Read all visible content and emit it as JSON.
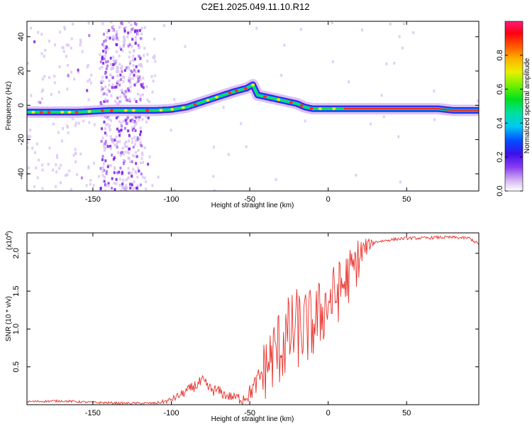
{
  "title": "C2E1.2025.049.11.10.R12",
  "chart_data": [
    {
      "type": "heatmap",
      "name": "spectrogram",
      "xlabel": "Height of straight line (km)",
      "ylabel": "Frequency (Hz)",
      "xlim": [
        -192,
        96
      ],
      "ylim": [
        -50,
        49
      ],
      "xticks": [
        -150,
        -100,
        -50,
        0,
        50
      ],
      "xtick_labels": [
        "-150",
        "-100",
        "-50",
        "0",
        "50"
      ],
      "yticks": [
        -40,
        -20,
        0,
        20,
        40
      ],
      "ytick_labels": [
        "-40",
        "-20",
        "0",
        "20",
        "40"
      ],
      "ridge": {
        "x": [
          -192,
          -180,
          -170,
          -160,
          -150,
          -140,
          -130,
          -120,
          -110,
          -100,
          -90,
          -80,
          -70,
          -60,
          -52,
          -48,
          -45,
          -40,
          -30,
          -20,
          -15,
          -10,
          -5,
          0,
          10,
          20,
          30,
          40,
          50,
          60,
          70,
          80,
          90,
          96
        ],
        "freq": [
          -4,
          -4,
          -4,
          -4,
          -3.5,
          -3,
          -3,
          -3,
          -3,
          -2.5,
          -1,
          2,
          5,
          8,
          10,
          12,
          6,
          5,
          3,
          1,
          -1,
          -2,
          -2,
          -2,
          -2,
          -2,
          -2,
          -2,
          -2,
          -2,
          -2,
          -3,
          -3,
          -3
        ]
      },
      "colorbar": {
        "label": "Normalized spectral amplitude",
        "range": [
          0,
          1
        ],
        "ticks": [
          0.0,
          0.2,
          0.4,
          0.6,
          0.8
        ],
        "tick_labels": [
          "0.0",
          "0.2",
          "0.4",
          "0.6",
          "0.8"
        ]
      }
    },
    {
      "type": "line",
      "name": "snr",
      "xlabel": "Height of straight line (km)",
      "ylabel": "SNR (10 * v/v)",
      "y_multiplier_base": "(x10",
      "y_multiplier_exp": "4",
      "y_multiplier_close": ")",
      "xlim": [
        -192,
        96
      ],
      "ylim": [
        0,
        2.27
      ],
      "xticks": [
        -150,
        -100,
        -50,
        0,
        50
      ],
      "xtick_labels": [
        "-150",
        "-100",
        "-50",
        "0",
        "50"
      ],
      "yticks": [
        0.5,
        1.0,
        1.5,
        2.0
      ],
      "ytick_labels": [
        "0.5",
        "1.0",
        "1.5",
        "2.0"
      ],
      "color": "#e8302a",
      "envelope": {
        "x": [
          -192,
          -170,
          -150,
          -130,
          -110,
          -102,
          -95,
          -90,
          -85,
          -80,
          -75,
          -70,
          -65,
          -60,
          -55,
          -50,
          -45,
          -40,
          -35,
          -30,
          -25,
          -20,
          -15,
          -10,
          -5,
          0,
          5,
          10,
          15,
          20,
          25,
          30,
          40,
          50,
          60,
          70,
          80,
          90,
          96
        ],
        "y": [
          0.04,
          0.05,
          0.03,
          0.02,
          0.02,
          0.05,
          0.12,
          0.18,
          0.25,
          0.3,
          0.2,
          0.18,
          0.12,
          0.1,
          0.08,
          0.15,
          0.3,
          0.5,
          0.65,
          0.8,
          0.9,
          1.0,
          1.0,
          1.05,
          1.2,
          1.35,
          1.45,
          1.6,
          1.75,
          1.95,
          2.1,
          2.15,
          2.18,
          2.2,
          2.2,
          2.21,
          2.21,
          2.2,
          2.12
        ]
      },
      "noise": {
        "x": [
          -192,
          -110,
          -100,
          -80,
          -60,
          -45,
          -40,
          -30,
          -20,
          -10,
          0,
          10,
          20,
          25,
          30,
          96
        ],
        "amp": [
          0.015,
          0.015,
          0.04,
          0.09,
          0.06,
          0.15,
          0.45,
          0.55,
          0.55,
          0.5,
          0.45,
          0.4,
          0.3,
          0.1,
          0.02,
          0.02
        ]
      }
    }
  ],
  "colors": {
    "background": "#ffffff",
    "axis": "#000000"
  }
}
